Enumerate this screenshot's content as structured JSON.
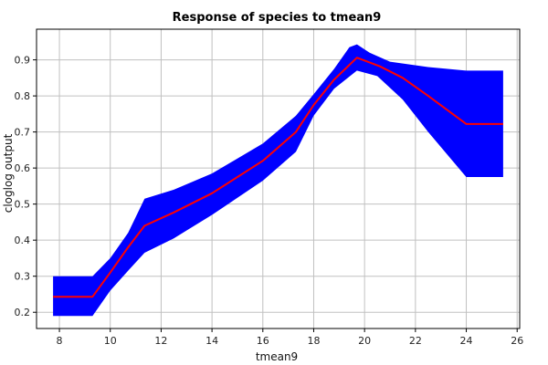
{
  "chart_data": {
    "type": "line",
    "title": "Response of species to tmean9",
    "xlabel": "tmean9",
    "ylabel": "cloglog output",
    "xlim": [
      7.1,
      26.1
    ],
    "ylim": [
      0.155,
      0.985
    ],
    "xticks": [
      8,
      10,
      12,
      14,
      16,
      18,
      20,
      22,
      24,
      26
    ],
    "yticks": [
      0.2,
      0.3,
      0.4,
      0.5,
      0.6,
      0.7,
      0.8,
      0.9
    ],
    "grid": true,
    "colors": {
      "band": "#0000ff",
      "line": "#ff0000",
      "grid": "#c0c0c0",
      "background": "#ffffff"
    },
    "series": [
      {
        "role": "mean",
        "x": [
          7.75,
          9.3,
          10.0,
          10.7,
          11.35,
          12.5,
          14.0,
          16.0,
          17.3,
          18.0,
          18.8,
          19.7,
          20.6,
          21.5,
          22.5,
          24.0,
          25.45
        ],
        "y": [
          0.243,
          0.243,
          0.31,
          0.38,
          0.44,
          0.477,
          0.53,
          0.62,
          0.7,
          0.775,
          0.845,
          0.906,
          0.882,
          0.85,
          0.8,
          0.722,
          0.722
        ]
      },
      {
        "role": "upper",
        "x": [
          7.75,
          9.3,
          10.0,
          10.7,
          11.35,
          12.5,
          14.0,
          16.0,
          17.3,
          18.0,
          18.8,
          19.4,
          19.7,
          20.2,
          21.0,
          22.5,
          24.0,
          25.45
        ],
        "y": [
          0.3,
          0.3,
          0.35,
          0.42,
          0.515,
          0.54,
          0.585,
          0.668,
          0.745,
          0.805,
          0.875,
          0.935,
          0.943,
          0.92,
          0.895,
          0.88,
          0.87,
          0.87
        ]
      },
      {
        "role": "lower",
        "x": [
          7.75,
          9.3,
          10.0,
          10.7,
          11.35,
          12.5,
          14.0,
          16.0,
          17.3,
          18.0,
          18.8,
          19.7,
          20.5,
          21.5,
          22.5,
          24.0,
          25.45
        ],
        "y": [
          0.19,
          0.19,
          0.26,
          0.315,
          0.365,
          0.405,
          0.47,
          0.565,
          0.645,
          0.745,
          0.82,
          0.87,
          0.855,
          0.79,
          0.7,
          0.575,
          0.575
        ]
      }
    ]
  }
}
